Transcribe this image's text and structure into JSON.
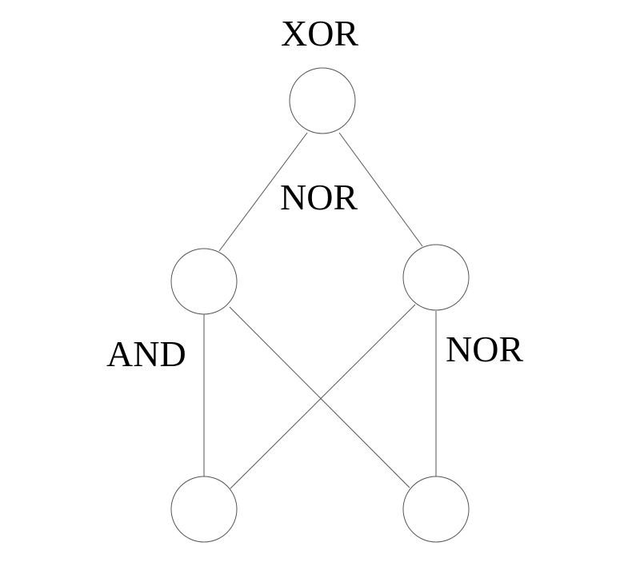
{
  "diagram": {
    "labels": {
      "top": "XOR",
      "middle": "NOR",
      "left": "AND",
      "right": "NOR"
    },
    "nodes": [
      {
        "id": "top"
      },
      {
        "id": "mid-left"
      },
      {
        "id": "mid-right"
      },
      {
        "id": "bottom-left"
      },
      {
        "id": "bottom-right"
      }
    ],
    "edges": [
      [
        "top",
        "mid-left"
      ],
      [
        "top",
        "mid-right"
      ],
      [
        "mid-left",
        "bottom-left"
      ],
      [
        "mid-left",
        "bottom-right"
      ],
      [
        "mid-right",
        "bottom-left"
      ],
      [
        "mid-right",
        "bottom-right"
      ]
    ],
    "colors": {
      "stroke": "#555555",
      "text": "#000000",
      "background": "#ffffff"
    }
  }
}
